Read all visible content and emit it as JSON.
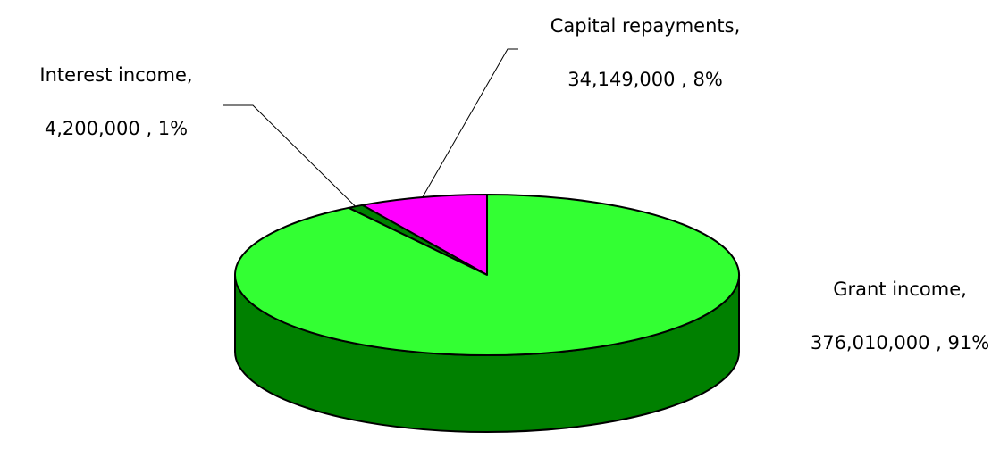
{
  "chart_data": {
    "type": "pie3d",
    "categories": [
      "Grant income,",
      "Capital repayments,",
      "Interest income,"
    ],
    "values": [
      376010000,
      34149000,
      4200000
    ],
    "value_labels": [
      "376,010,000 , 91%",
      "34,149,000 , 8%",
      "4,200,000 , 1%"
    ],
    "colors": [
      "#33ff33",
      "#ff00ff",
      "#008000"
    ],
    "side_color": "#008000"
  }
}
